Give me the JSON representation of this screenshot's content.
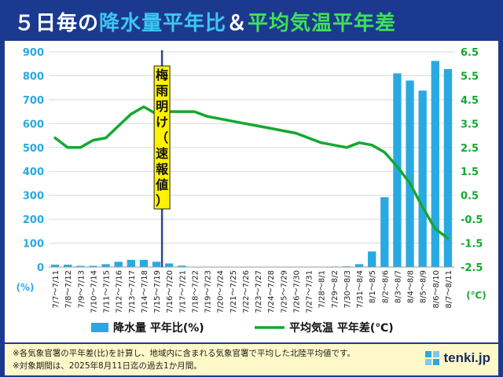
{
  "header": {
    "title_part1": "５日毎の",
    "title_part2": "降水量平年比",
    "title_part3": "＆",
    "title_part4": "平均気温平年差"
  },
  "footer": {
    "note1": "※各気象官署の平年差(比)を計算し、地域内に含まれる気象官署で平均した北陸平均値です。",
    "note2": "※対象期間は、2025年8月11日迄の過去1か月間。",
    "brand": "tenki.jp"
  },
  "annotation": {
    "chars": [
      "梅",
      "雨",
      "明",
      "け",
      "（",
      "速",
      "報",
      "値",
      "）"
    ],
    "category_index": 9
  },
  "colors": {
    "bar": "#29a9e1",
    "line": "#14a832",
    "right_axis": "#14a832",
    "left_axis": "#29a9e1",
    "marker": "#2a4a8a"
  },
  "chart_data": {
    "type": "bar",
    "categories": [
      "7/7～7/11",
      "7/8～7/12",
      "7/9～7/13",
      "7/10～7/14",
      "7/11～7/15",
      "7/12～7/16",
      "7/13～7/17",
      "7/14～7/18",
      "7/15～7/19",
      "7/16～7/20",
      "7/17～7/21",
      "7/18～7/22",
      "7/19～7/23",
      "7/20～7/24",
      "7/21～7/25",
      "7/22～7/26",
      "7/23～7/27",
      "7/24～7/28",
      "7/25～7/29",
      "7/26～7/30",
      "7/27～7/31",
      "7/28～8/1",
      "7/29～8/2",
      "7/30～8/3",
      "7/31～8/4",
      "8/1～8/5",
      "8/2～8/6",
      "8/3～8/7",
      "8/4～8/8",
      "8/5～8/9",
      "8/6～8/10",
      "8/7～8/11"
    ],
    "series": [
      {
        "name": "降水量 平年比(%)",
        "axis": "left",
        "kind": "bar",
        "values": [
          10,
          10,
          5,
          5,
          12,
          22,
          30,
          30,
          22,
          15,
          6,
          0,
          0,
          0,
          0,
          0,
          0,
          0,
          0,
          0,
          0,
          0,
          2,
          3,
          12,
          65,
          292,
          810,
          780,
          738,
          862,
          828
        ]
      },
      {
        "name": "平均気温 平年差(℃)",
        "axis": "right",
        "kind": "line",
        "values": [
          2.9,
          2.5,
          2.5,
          2.8,
          2.9,
          3.4,
          3.9,
          4.2,
          3.9,
          4.0,
          4.0,
          4.0,
          3.8,
          3.7,
          3.6,
          3.5,
          3.4,
          3.3,
          3.2,
          3.1,
          2.9,
          2.7,
          2.6,
          2.5,
          2.7,
          2.6,
          2.3,
          1.7,
          1.0,
          0.0,
          -0.9,
          -1.3
        ]
      }
    ],
    "y_left": {
      "label": "(%)",
      "ylim": [
        0,
        900
      ],
      "ticks": [
        0,
        100,
        200,
        300,
        400,
        500,
        600,
        700,
        800,
        900
      ]
    },
    "y_right": {
      "label": "(℃)",
      "ylim": [
        -2.5,
        6.5
      ],
      "ticks": [
        "-2.5",
        "-1.5",
        "-0.5",
        "0.5",
        "1.5",
        "2.5",
        "3.5",
        "4.5",
        "5.5",
        "6.5"
      ]
    },
    "grid": true,
    "legend_position": "bottom"
  }
}
